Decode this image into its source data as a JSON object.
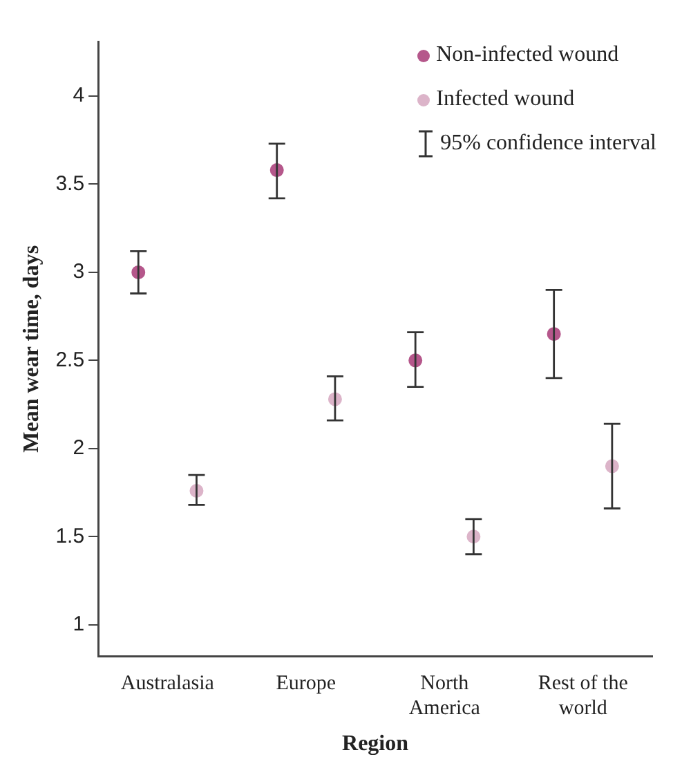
{
  "chart_data": {
    "type": "scatter",
    "xlabel": "Region",
    "ylabel": "Mean wear time, days",
    "categories": [
      "Australasia",
      "Europe",
      "North\nAmerica",
      "Rest of the\nworld"
    ],
    "series": [
      {
        "name": "Non-infected wound",
        "color": "#b5578b",
        "values": [
          3.0,
          3.58,
          2.5,
          2.65
        ],
        "errors": [
          [
            2.88,
            3.12
          ],
          [
            3.42,
            3.73
          ],
          [
            2.35,
            2.66
          ],
          [
            2.4,
            2.9
          ]
        ]
      },
      {
        "name": "Infected wound",
        "color": "#dcb4c9",
        "values": [
          1.76,
          2.28,
          1.5,
          1.9
        ],
        "errors": [
          [
            1.68,
            1.85
          ],
          [
            2.16,
            2.41
          ],
          [
            1.4,
            1.6
          ],
          [
            1.66,
            2.14
          ]
        ]
      }
    ],
    "annotations": [
      "95% confidence interval"
    ],
    "ylim": [
      0.82,
      4.31
    ],
    "yticks": [
      1,
      1.5,
      2,
      2.5,
      3,
      3.5,
      4
    ],
    "grid": false,
    "legend": "top right",
    "marker": "circle"
  }
}
